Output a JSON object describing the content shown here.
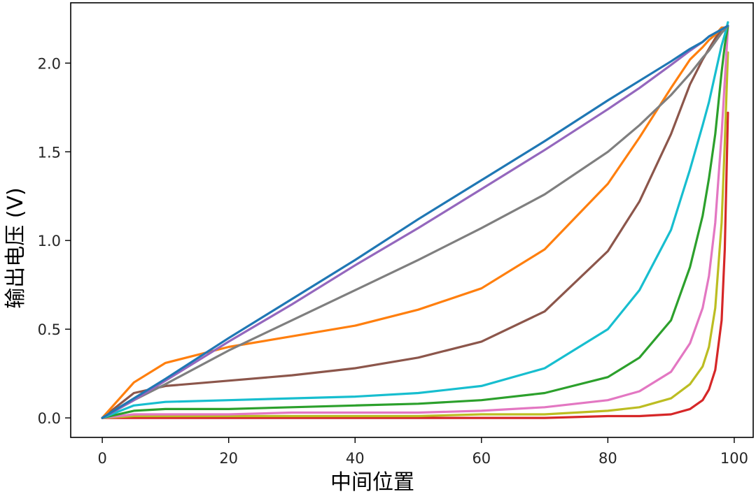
{
  "chart_data": {
    "type": "line",
    "title": "",
    "xlabel": "中间位置",
    "ylabel": "输出电压 (V)",
    "xlim": [
      -5,
      103
    ],
    "ylim": [
      -0.11,
      2.34
    ],
    "xticks": [
      "0",
      "20",
      "40",
      "60",
      "80",
      "100"
    ],
    "yticks": [
      "0.0",
      "0.5",
      "1.0",
      "1.5",
      "2.0"
    ],
    "grid": false,
    "legend": "none",
    "x": [
      0,
      5,
      10,
      20,
      30,
      40,
      50,
      60,
      70,
      80,
      85,
      90,
      93,
      95,
      96,
      97,
      98,
      98.5,
      99
    ],
    "series": [
      {
        "color": "#d62728",
        "values": [
          0.0,
          0.0,
          0.0,
          0.0,
          0.0,
          0.0,
          0.0,
          0.0,
          0.0,
          0.01,
          0.01,
          0.02,
          0.05,
          0.1,
          0.16,
          0.27,
          0.55,
          0.95,
          1.72
        ]
      },
      {
        "color": "#bcbd22",
        "values": [
          0.0,
          0.01,
          0.01,
          0.01,
          0.01,
          0.01,
          0.01,
          0.02,
          0.02,
          0.04,
          0.06,
          0.11,
          0.19,
          0.29,
          0.4,
          0.62,
          1.1,
          1.55,
          2.06
        ]
      },
      {
        "color": "#e377c2",
        "values": [
          0.0,
          0.02,
          0.02,
          0.02,
          0.03,
          0.03,
          0.03,
          0.04,
          0.06,
          0.1,
          0.15,
          0.26,
          0.42,
          0.62,
          0.8,
          1.1,
          1.6,
          1.9,
          2.2
        ]
      },
      {
        "color": "#2ca02c",
        "values": [
          0.0,
          0.04,
          0.05,
          0.05,
          0.06,
          0.07,
          0.08,
          0.1,
          0.14,
          0.23,
          0.34,
          0.55,
          0.85,
          1.14,
          1.35,
          1.6,
          1.95,
          2.1,
          2.21
        ]
      },
      {
        "color": "#17becf",
        "values": [
          0.0,
          0.07,
          0.09,
          0.1,
          0.11,
          0.12,
          0.14,
          0.18,
          0.28,
          0.5,
          0.72,
          1.06,
          1.4,
          1.65,
          1.78,
          1.94,
          2.1,
          2.16,
          2.23
        ]
      },
      {
        "color": "#8c564b",
        "values": [
          0.0,
          0.14,
          0.18,
          0.21,
          0.24,
          0.28,
          0.34,
          0.43,
          0.6,
          0.94,
          1.22,
          1.6,
          1.88,
          2.02,
          2.08,
          2.14,
          2.19,
          2.2,
          2.21
        ]
      },
      {
        "color": "#ff7f0e",
        "values": [
          0.0,
          0.2,
          0.31,
          0.4,
          0.46,
          0.52,
          0.61,
          0.73,
          0.95,
          1.32,
          1.58,
          1.86,
          2.02,
          2.09,
          2.13,
          2.16,
          2.2,
          2.2,
          2.21
        ]
      },
      {
        "color": "#7f7f7f",
        "values": [
          0.0,
          0.1,
          0.19,
          0.38,
          0.55,
          0.72,
          0.89,
          1.07,
          1.26,
          1.5,
          1.65,
          1.82,
          1.94,
          2.03,
          2.07,
          2.12,
          2.17,
          2.19,
          2.21
        ]
      },
      {
        "color": "#9467bd",
        "values": [
          0.0,
          0.1,
          0.21,
          0.43,
          0.64,
          0.86,
          1.07,
          1.29,
          1.51,
          1.74,
          1.86,
          1.99,
          2.07,
          2.12,
          2.15,
          2.17,
          2.19,
          2.2,
          2.21
        ]
      },
      {
        "color": "#1f77b4",
        "values": [
          0.0,
          0.11,
          0.22,
          0.45,
          0.67,
          0.89,
          1.12,
          1.34,
          1.56,
          1.79,
          1.9,
          2.01,
          2.08,
          2.12,
          2.15,
          2.17,
          2.19,
          2.2,
          2.21
        ]
      }
    ]
  }
}
